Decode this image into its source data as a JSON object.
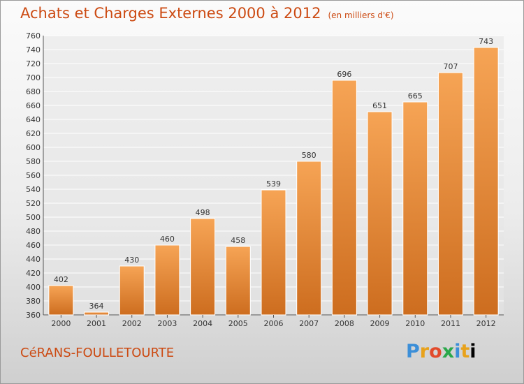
{
  "title": "Achats et Charges Externes 2000 à 2012",
  "unit_note": "(en milliers d'€)",
  "commune": "CéRANS-FOULLETOURTE",
  "brand": {
    "text": "Proxiti",
    "letters": [
      "P",
      "r",
      "o",
      "x",
      "i",
      "t",
      "i"
    ]
  },
  "colors": {
    "title": "#cc4a12",
    "bar_top": "#f6a455",
    "bar_bottom": "#cd6d1f",
    "bar_edge": "#ffffff"
  },
  "chart_data": {
    "type": "bar",
    "categories": [
      "2000",
      "2001",
      "2002",
      "2003",
      "2004",
      "2005",
      "2006",
      "2007",
      "2008",
      "2009",
      "2010",
      "2011",
      "2012"
    ],
    "values": [
      402,
      364,
      430,
      460,
      498,
      458,
      539,
      580,
      696,
      651,
      665,
      707,
      743
    ],
    "ylim": [
      360,
      760
    ],
    "yticks": [
      360,
      380,
      400,
      420,
      440,
      460,
      480,
      500,
      520,
      540,
      560,
      580,
      600,
      620,
      640,
      660,
      680,
      700,
      720,
      740,
      760
    ],
    "grid": true,
    "legend": "none"
  }
}
